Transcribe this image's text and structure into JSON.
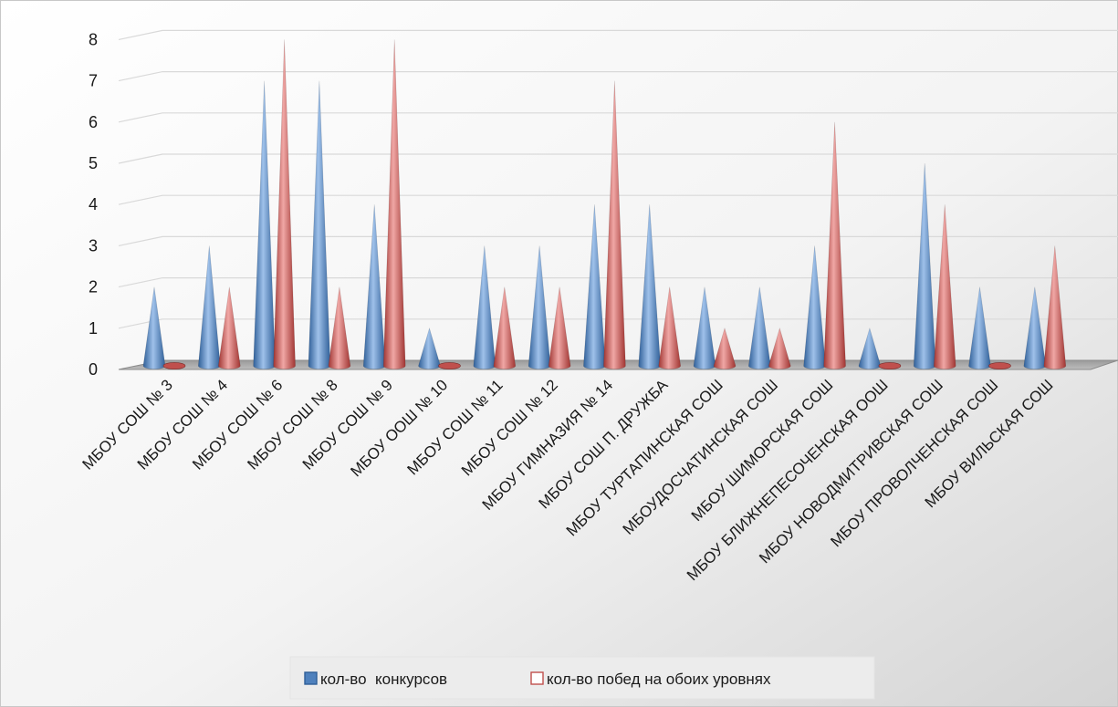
{
  "chart_data": {
    "type": "bar",
    "title": "",
    "xlabel": "",
    "ylabel": "",
    "ylim": [
      0,
      8
    ],
    "yticks": [
      0,
      1,
      2,
      3,
      4,
      5,
      6,
      7,
      8
    ],
    "grid": true,
    "legend_position": "bottom",
    "categories": [
      "МБОУ СОШ № 3",
      "МБОУ СОШ № 4",
      "МБОУ СОШ № 6",
      "МБОУ СОШ № 8",
      "МБОУ СОШ № 9",
      "МБОУ ООШ № 10",
      "МБОУ СОШ № 11",
      "МБОУ СОШ № 12",
      "МБОУ ГИМНАЗИЯ № 14",
      "МБОУ СОШ П. ДРУЖБА",
      "МБОУ ТУРТАПИНСКАЯ СОШ",
      "МБОУДОСЧАТИНСКАЯ СОШ",
      "МБОУ ШИМОРСКАЯ СОШ",
      "МБОУ БЛИЖНЕПЕСОЧЕНСКАЯ ООШ",
      "МБОУ НОВОДМИТРИВСКАЯ СОШ",
      "МБОУ ПРОВОЛЧЕНСКАЯ СОШ",
      "МБОУ ВИЛЬСКАЯ СОШ"
    ],
    "series": [
      {
        "name": "кол-во  конкурсов",
        "color": "#4F81BD",
        "values": [
          2,
          3,
          7,
          7,
          4,
          1,
          3,
          3,
          4,
          4,
          2,
          2,
          3,
          1,
          5,
          2,
          2
        ]
      },
      {
        "name": "кол-во побед на обоих уровнях",
        "color": "#C0504D",
        "values": [
          0,
          2,
          8,
          2,
          8,
          0,
          2,
          2,
          7,
          2,
          1,
          1,
          6,
          0,
          4,
          0,
          3
        ]
      }
    ]
  }
}
